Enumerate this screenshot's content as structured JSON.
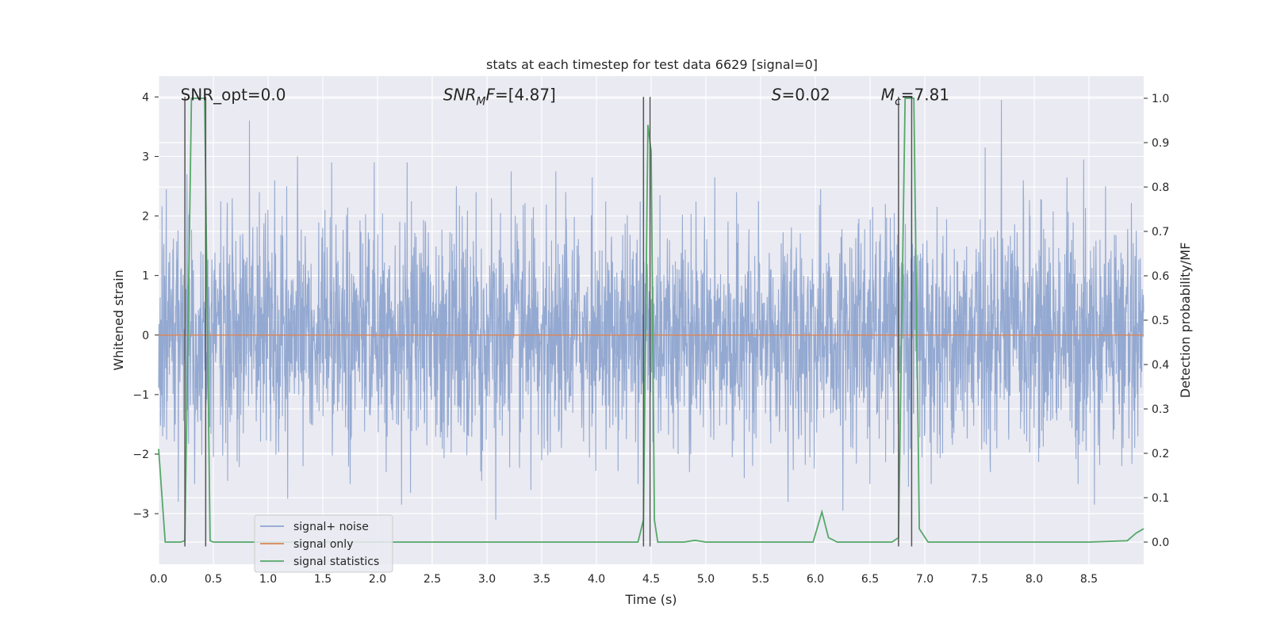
{
  "chart_data": {
    "type": "line",
    "title": "stats at each timestep for test data 6629 [signal=0]",
    "xlabel": "Time (s)",
    "ylabel": "Whitened strain",
    "y2label": "Detection probability/MF",
    "xlim": [
      0.0,
      9.0
    ],
    "ylim": [
      -3.85,
      4.35
    ],
    "y2lim": [
      -0.05,
      1.05
    ],
    "xticks": [
      0.0,
      0.5,
      1.0,
      1.5,
      2.0,
      2.5,
      3.0,
      3.5,
      4.0,
      4.5,
      5.0,
      5.5,
      6.0,
      6.5,
      7.0,
      7.5,
      8.0,
      8.5
    ],
    "xtick_labels": [
      "0.0",
      "0.5",
      "1.0",
      "1.5",
      "2.0",
      "2.5",
      "3.0",
      "3.5",
      "4.0",
      "4.5",
      "5.0",
      "5.5",
      "6.0",
      "6.5",
      "7.0",
      "7.5",
      "8.0",
      "8.5"
    ],
    "yticks": [
      4,
      3,
      2,
      1,
      0,
      -1,
      -2,
      -3
    ],
    "ytick_labels": [
      "4",
      "3",
      "2",
      "1",
      "0",
      "−1",
      "−2",
      "−3"
    ],
    "y2ticks": [
      1.0,
      0.9,
      0.8,
      0.7,
      0.6,
      0.5,
      0.4,
      0.3,
      0.2,
      0.1,
      0.0
    ],
    "y2tick_labels": [
      "1.0",
      "0.9",
      "0.8",
      "0.7",
      "0.6",
      "0.5",
      "0.4",
      "0.3",
      "0.2",
      "0.1",
      "0.0"
    ],
    "grid": true,
    "legend_position": "lower-left",
    "annotations": [
      {
        "text": "SNR_opt=0.0",
        "x": 0.2,
        "y": 4.0
      },
      {
        "text": "SNR_MF=[4.87]",
        "x": 2.6,
        "y": 4.0
      },
      {
        "text": "S=0.02",
        "x": 5.6,
        "y": 4.0
      },
      {
        "text": "M_c=7.81",
        "x": 6.6,
        "y": 4.0
      }
    ],
    "vertical_lines": [
      0.24,
      0.43,
      4.43,
      4.49,
      6.76,
      6.88
    ],
    "vertical_line_range": [
      -3.55,
      4.0
    ],
    "series": [
      {
        "name": "signal+ noise",
        "color": "#8fa5cf",
        "axis": "left",
        "kind": "noise",
        "x_range": [
          0.0,
          9.0
        ],
        "samples": 3200,
        "band_sigma": 0.95,
        "spikes": [
          {
            "x": 0.07,
            "y": 2.45
          },
          {
            "x": 0.18,
            "y": -2.8
          },
          {
            "x": 0.26,
            "y": 2.7
          },
          {
            "x": 0.33,
            "y": -2.5
          },
          {
            "x": 0.5,
            "y": -2.05
          },
          {
            "x": 0.83,
            "y": 3.6
          },
          {
            "x": 0.92,
            "y": 2.4
          },
          {
            "x": 1.06,
            "y": 2.6
          },
          {
            "x": 1.17,
            "y": 2.5
          },
          {
            "x": 1.27,
            "y": 3.0
          },
          {
            "x": 1.52,
            "y": 2.1
          },
          {
            "x": 1.58,
            "y": 2.9
          },
          {
            "x": 1.18,
            "y": -2.75
          },
          {
            "x": 1.97,
            "y": 2.9
          },
          {
            "x": 2.27,
            "y": 2.9
          },
          {
            "x": 2.22,
            "y": -2.85
          },
          {
            "x": 2.3,
            "y": -2.65
          },
          {
            "x": 2.08,
            "y": -2.3
          },
          {
            "x": 2.72,
            "y": 2.5
          },
          {
            "x": 2.9,
            "y": 2.4
          },
          {
            "x": 3.08,
            "y": -3.1
          },
          {
            "x": 3.22,
            "y": 2.75
          },
          {
            "x": 3.4,
            "y": -2.6
          },
          {
            "x": 3.63,
            "y": 2.75
          },
          {
            "x": 3.72,
            "y": 2.4
          },
          {
            "x": 3.96,
            "y": 2.65
          },
          {
            "x": 4.38,
            "y": -2.5
          },
          {
            "x": 4.58,
            "y": 2.35
          },
          {
            "x": 5.08,
            "y": 2.65
          },
          {
            "x": 5.28,
            "y": 2.4
          },
          {
            "x": 5.48,
            "y": 2.25
          },
          {
            "x": 5.75,
            "y": -2.8
          },
          {
            "x": 6.05,
            "y": 2.45
          },
          {
            "x": 6.25,
            "y": -2.95
          },
          {
            "x": 6.5,
            "y": -2.5
          },
          {
            "x": 6.88,
            "y": 2.6
          },
          {
            "x": 6.64,
            "y": 2.2
          },
          {
            "x": 7.06,
            "y": -2.5
          },
          {
            "x": 7.55,
            "y": 3.15
          },
          {
            "x": 7.6,
            "y": -2.3
          },
          {
            "x": 7.7,
            "y": 3.95
          },
          {
            "x": 7.9,
            "y": 2.6
          },
          {
            "x": 8.3,
            "y": 2.65
          },
          {
            "x": 8.45,
            "y": 2.95
          },
          {
            "x": 8.4,
            "y": -2.5
          },
          {
            "x": 8.55,
            "y": -2.85
          },
          {
            "x": 8.65,
            "y": 2.5
          },
          {
            "x": 8.8,
            "y": -2.2
          },
          {
            "x": 0.63,
            "y": -2.45
          },
          {
            "x": 1.75,
            "y": -2.5
          },
          {
            "x": 2.95,
            "y": -2.45
          },
          {
            "x": 4.85,
            "y": -2.3
          },
          {
            "x": 5.35,
            "y": -2.4
          },
          {
            "x": 6.85,
            "y": -2.55
          }
        ]
      },
      {
        "name": "signal only",
        "color": "#dd8452",
        "axis": "left",
        "kind": "line",
        "x": [
          0.0,
          9.0
        ],
        "y": [
          0.0,
          0.0
        ]
      },
      {
        "name": "signal statistics",
        "color": "#55a868",
        "axis": "right",
        "kind": "line",
        "x": [
          0.0,
          0.06,
          0.1,
          0.2,
          0.24,
          0.3,
          0.42,
          0.47,
          0.5,
          1.0,
          2.0,
          3.0,
          4.0,
          4.38,
          4.43,
          4.47,
          4.5,
          4.53,
          4.56,
          4.6,
          4.8,
          4.9,
          5.0,
          5.5,
          5.98,
          6.06,
          6.12,
          6.2,
          6.5,
          6.7,
          6.76,
          6.82,
          6.9,
          6.95,
          7.03,
          7.5,
          8.0,
          8.5,
          8.85,
          8.93,
          9.0
        ],
        "y": [
          0.21,
          0.0,
          0.0,
          0.0,
          0.003,
          1.0,
          1.0,
          0.003,
          0.0,
          0.0,
          0.0,
          0.0,
          0.0,
          0.0,
          0.05,
          0.94,
          0.88,
          0.05,
          0.0,
          0.0,
          0.0,
          0.004,
          0.0,
          0.0,
          0.0,
          0.068,
          0.01,
          0.0,
          0.0,
          0.0,
          0.01,
          1.0,
          1.0,
          0.03,
          0.0,
          0.0,
          0.0,
          0.0,
          0.003,
          0.02,
          0.03
        ]
      }
    ]
  }
}
